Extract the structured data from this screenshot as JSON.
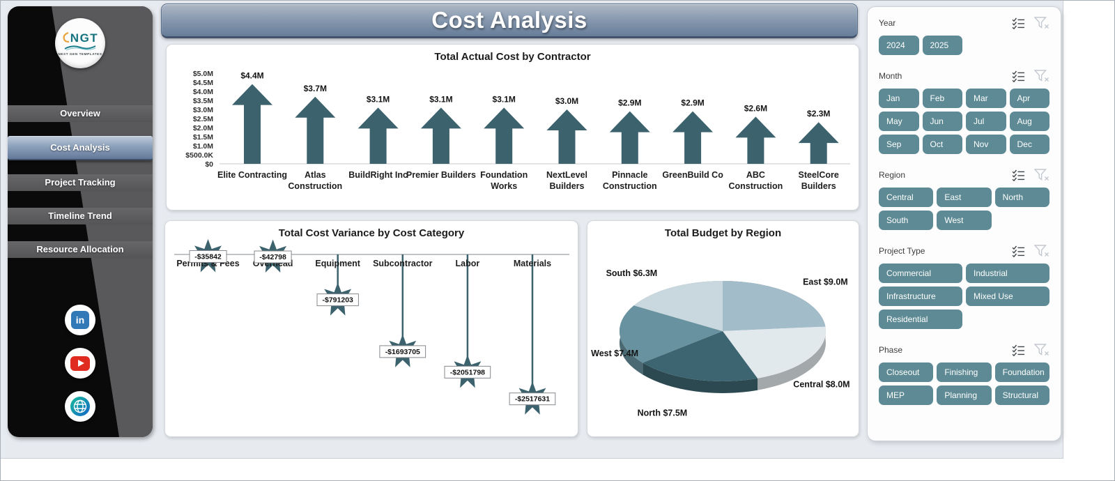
{
  "page": {
    "title": "Cost Analysis"
  },
  "sidebar": {
    "logo": {
      "text": "NGT",
      "caption": "NEXT GEN TEMPLATES"
    },
    "items": [
      {
        "label": "Overview",
        "active": false
      },
      {
        "label": "Cost Analysis",
        "active": true
      },
      {
        "label": "Project Tracking",
        "active": false
      },
      {
        "label": "Timeline Trend",
        "active": false
      },
      {
        "label": "Resource Allocation",
        "active": false
      }
    ],
    "social": [
      {
        "name": "linkedin",
        "glyph": "in"
      },
      {
        "name": "youtube"
      },
      {
        "name": "website"
      }
    ]
  },
  "filters": {
    "button_color": "#5d8a94",
    "groups": [
      {
        "name": "Year",
        "columns": 4,
        "options": [
          "2024",
          "2025"
        ]
      },
      {
        "name": "Month",
        "columns": 4,
        "options": [
          "Jan",
          "Feb",
          "Mar",
          "Apr",
          "May",
          "Jun",
          "Jul",
          "Aug",
          "Sep",
          "Oct",
          "Nov",
          "Dec"
        ]
      },
      {
        "name": "Region",
        "columns": 3,
        "options": [
          "Central",
          "East",
          "North",
          "South",
          "West"
        ]
      },
      {
        "name": "Project Type",
        "columns": 2,
        "options": [
          "Commercial",
          "Industrial",
          "Infrastructure",
          "Mixed Use",
          "Residential"
        ]
      },
      {
        "name": "Phase",
        "columns": 3,
        "options": [
          "Closeout",
          "Finishing",
          "Foundation",
          "MEP",
          "Planning",
          "Structural"
        ]
      }
    ]
  },
  "chart_data": [
    {
      "type": "bar",
      "bar_style": "up-arrow",
      "title": "Total Actual Cost by Contractor",
      "categories": [
        "Elite Contracting",
        "Atlas Construction",
        "BuildRight Inc",
        "Premier Builders",
        "Foundation Works",
        "NextLevel Builders",
        "Pinnacle Construction",
        "GreenBuild Co",
        "ABC Construction",
        "SteelCore Builders"
      ],
      "category_lines": [
        [
          "Elite Contracting"
        ],
        [
          "Atlas",
          "Construction"
        ],
        [
          "BuildRight Inc"
        ],
        [
          "Premier Builders"
        ],
        [
          "Foundation",
          "Works"
        ],
        [
          "NextLevel",
          "Builders"
        ],
        [
          "Pinnacle",
          "Construction"
        ],
        [
          "GreenBuild Co"
        ],
        [
          "ABC",
          "Construction"
        ],
        [
          "SteelCore",
          "Builders"
        ]
      ],
      "values": [
        4400000,
        3700000,
        3100000,
        3100000,
        3100000,
        3000000,
        2900000,
        2900000,
        2600000,
        2300000
      ],
      "labels": [
        "$4.4M",
        "$3.7M",
        "$3.1M",
        "$3.1M",
        "$3.1M",
        "$3.0M",
        "$2.9M",
        "$2.9M",
        "$2.6M",
        "$2.3M"
      ],
      "y_ticks": [
        "$5.0M",
        "$4.5M",
        "$4.0M",
        "$3.5M",
        "$3.0M",
        "$2.5M",
        "$2.0M",
        "$1.5M",
        "$1.0M",
        "$500.0K",
        "$0"
      ],
      "ylim": [
        0,
        5000000
      ],
      "xlabel": "",
      "ylabel": "",
      "grid": false,
      "legend": "none",
      "color": "#3c626d"
    },
    {
      "type": "bar",
      "bar_style": "star-lollipop",
      "title": "Total Cost Variance by Cost Category",
      "categories": [
        "Permits & Fees",
        "Overhead",
        "Equipment",
        "Subcontractor",
        "Labor",
        "Materials"
      ],
      "values": [
        -35842,
        -42798,
        -791203,
        -1693705,
        -2051798,
        -2517631
      ],
      "labels": [
        "-$35842",
        "-$42798",
        "-$791203",
        "-$1693705",
        "-$2051798",
        "-$2517631"
      ],
      "ylim": [
        -2600000,
        0
      ],
      "xlabel": "",
      "ylabel": "",
      "grid": false,
      "legend": "none",
      "color": "#3c626d"
    },
    {
      "type": "pie",
      "style": "3d",
      "title": "Total Budget by Region",
      "order": "clockwise-from-top",
      "slices": [
        {
          "name": "East",
          "value": 9000000,
          "label": "East  $9.0M",
          "color": "#a3bcca"
        },
        {
          "name": "Central",
          "value": 8000000,
          "label": "Central $8.0M",
          "color": "#e2e9ed"
        },
        {
          "name": "North",
          "value": 7500000,
          "label": "North $7.5M",
          "color": "#3d6571"
        },
        {
          "name": "West",
          "value": 7400000,
          "label": "West $7.4M",
          "color": "#68929f"
        },
        {
          "name": "South",
          "value": 6300000,
          "label": "South $6.3M",
          "color": "#c9d7de"
        }
      ],
      "legend": "none"
    }
  ]
}
